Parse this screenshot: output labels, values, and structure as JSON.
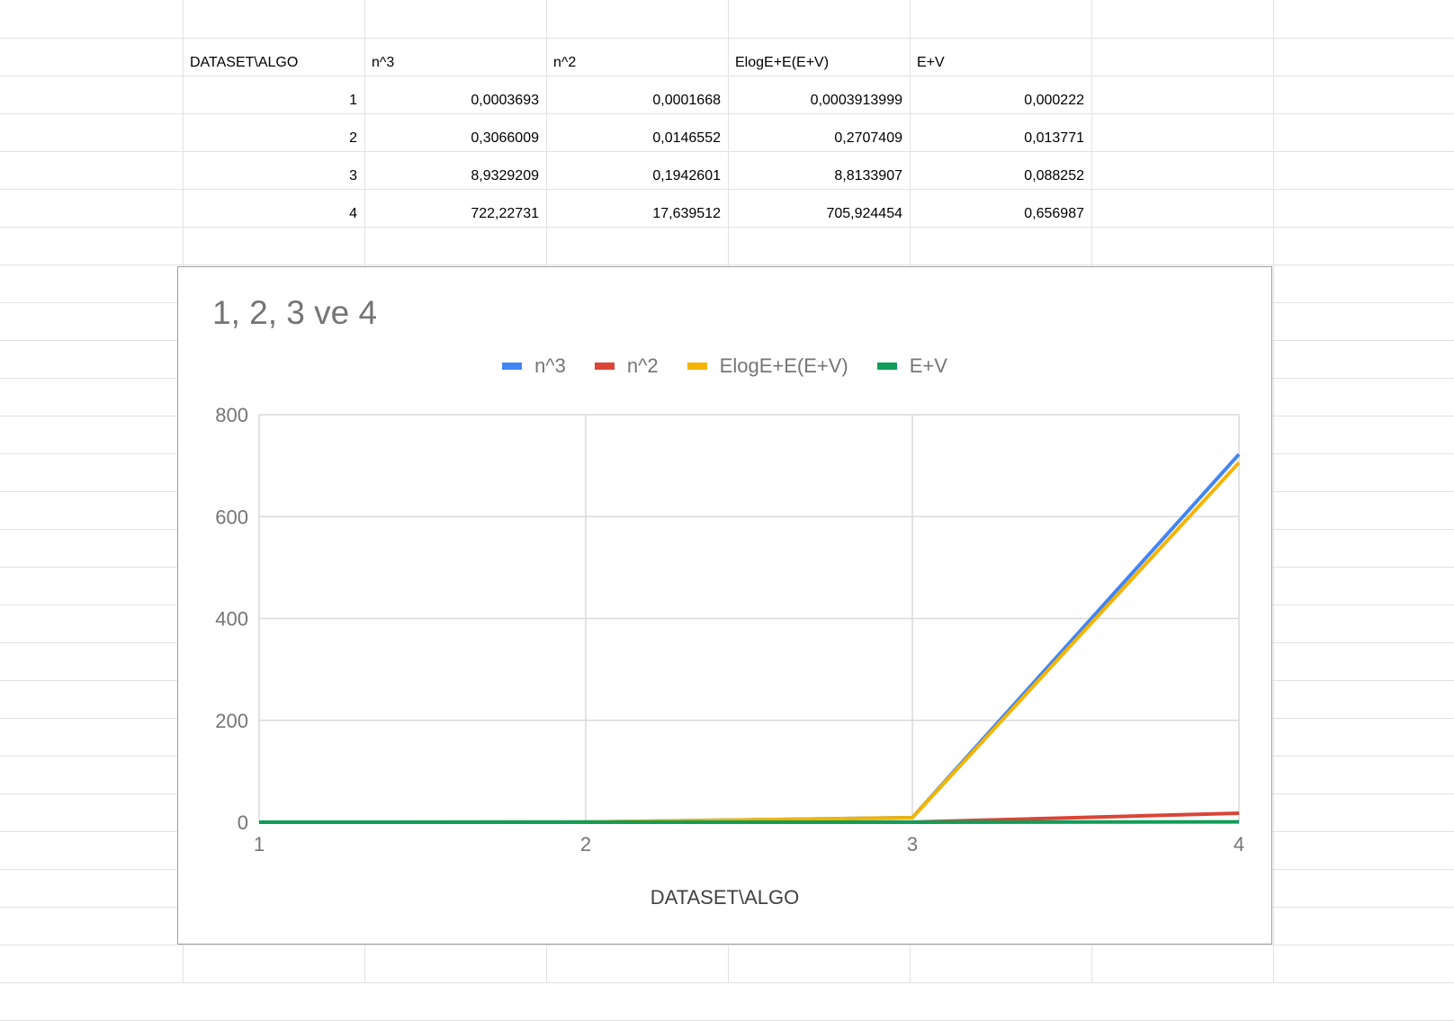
{
  "table": {
    "headers": [
      "DATASET\\ALGO",
      "n^3",
      "n^2",
      "ElogE+E(E+V)",
      "E+V"
    ],
    "rows": [
      [
        "1",
        "0,0003693",
        "0,0001668",
        "0,0003913999",
        "0,000222"
      ],
      [
        "2",
        "0,3066009",
        "0,0146552",
        "0,2707409",
        "0,013771"
      ],
      [
        "3",
        "8,9329209",
        "0,1942601",
        "8,8133907",
        "0,088252"
      ],
      [
        "4",
        "722,22731",
        "17,639512",
        "705,924454",
        "0,656987"
      ]
    ]
  },
  "chart_data": {
    "type": "line",
    "title": "1, 2, 3 ve 4",
    "xlabel": "DATASET\\ALGO",
    "ylabel": "",
    "x": [
      1,
      2,
      3,
      4
    ],
    "x_ticks": [
      "1",
      "2",
      "3",
      "4"
    ],
    "y_ticks": [
      "800",
      "600",
      "400",
      "200",
      "0"
    ],
    "ylim": [
      0,
      800
    ],
    "grid": true,
    "legend_position": "top",
    "series": [
      {
        "name": "n^3",
        "color": "#4285f4",
        "values": [
          0.0003693,
          0.3066009,
          8.9329209,
          722.22731
        ]
      },
      {
        "name": "n^2",
        "color": "#db4437",
        "values": [
          0.0001668,
          0.0146552,
          0.1942601,
          17.639512
        ]
      },
      {
        "name": "ElogE+E(E+V)",
        "color": "#f4b400",
        "values": [
          0.0003913999,
          0.2707409,
          8.8133907,
          705.924454
        ]
      },
      {
        "name": "E+V",
        "color": "#0f9d58",
        "values": [
          0.000222,
          0.013771,
          0.088252,
          0.656987
        ]
      }
    ]
  }
}
